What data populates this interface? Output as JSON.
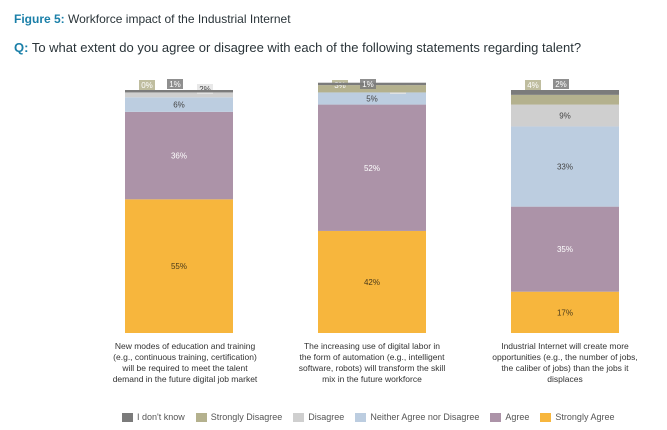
{
  "figure": {
    "title_lead": "Figure 5:",
    "title_rest": " Workforce impact of the Industrial Internet",
    "question_lead": "Q:",
    "question_rest": " To what extent do you agree or disagree with each of the following statements regarding talent?"
  },
  "colors": {
    "I don't know": "#7b7b7b",
    "Strongly Disagree": "#b4b18e",
    "Disagree": "#cfcfcf",
    "Neither Agree nor Disagree": "#bccde0",
    "Agree": "#ac93a8",
    "Strongly Agree": "#f7b63d"
  },
  "chart_data": {
    "type": "bar",
    "stacked": true,
    "orientation": "vertical",
    "categories": [
      "New modes of education and training (e.g., continuous training, certification) will be required to meet the talent demand in the future digital job market",
      "The increasing use of digital labor in the form of automation (e.g., intelligent software, robots) will transform the skill mix in the future workforce",
      "Industrial Internet will create more opportunities (e.g., the number of jobs, the caliber of jobs) than the jobs it displaces"
    ],
    "series": [
      {
        "name": "Strongly Agree",
        "values": [
          55,
          42,
          17
        ],
        "labels": [
          "55%",
          "42%",
          "17%"
        ]
      },
      {
        "name": "Agree",
        "values": [
          36,
          52,
          35
        ],
        "labels": [
          "36%",
          "52%",
          "35%"
        ]
      },
      {
        "name": "Neither Agree nor Disagree",
        "values": [
          6,
          5,
          33
        ],
        "labels": [
          "6%",
          "5%",
          "33%"
        ]
      },
      {
        "name": "Disagree",
        "values": [
          2,
          0,
          9
        ],
        "labels": [
          "2%",
          "0%",
          "9%"
        ]
      },
      {
        "name": "Strongly Disagree",
        "values": [
          0,
          3,
          4
        ],
        "labels": [
          "0%",
          "3%",
          "4%"
        ]
      },
      {
        "name": "I don't know",
        "values": [
          1,
          1,
          2
        ],
        "labels": [
          "1%",
          "1%",
          "2%"
        ]
      }
    ],
    "ylim": [
      0,
      100
    ],
    "legend_position": "bottom",
    "grid": false
  },
  "legend": [
    "I don't know",
    "Strongly Disagree",
    "Disagree",
    "Neither Agree nor Disagree",
    "Agree",
    "Strongly Agree"
  ]
}
